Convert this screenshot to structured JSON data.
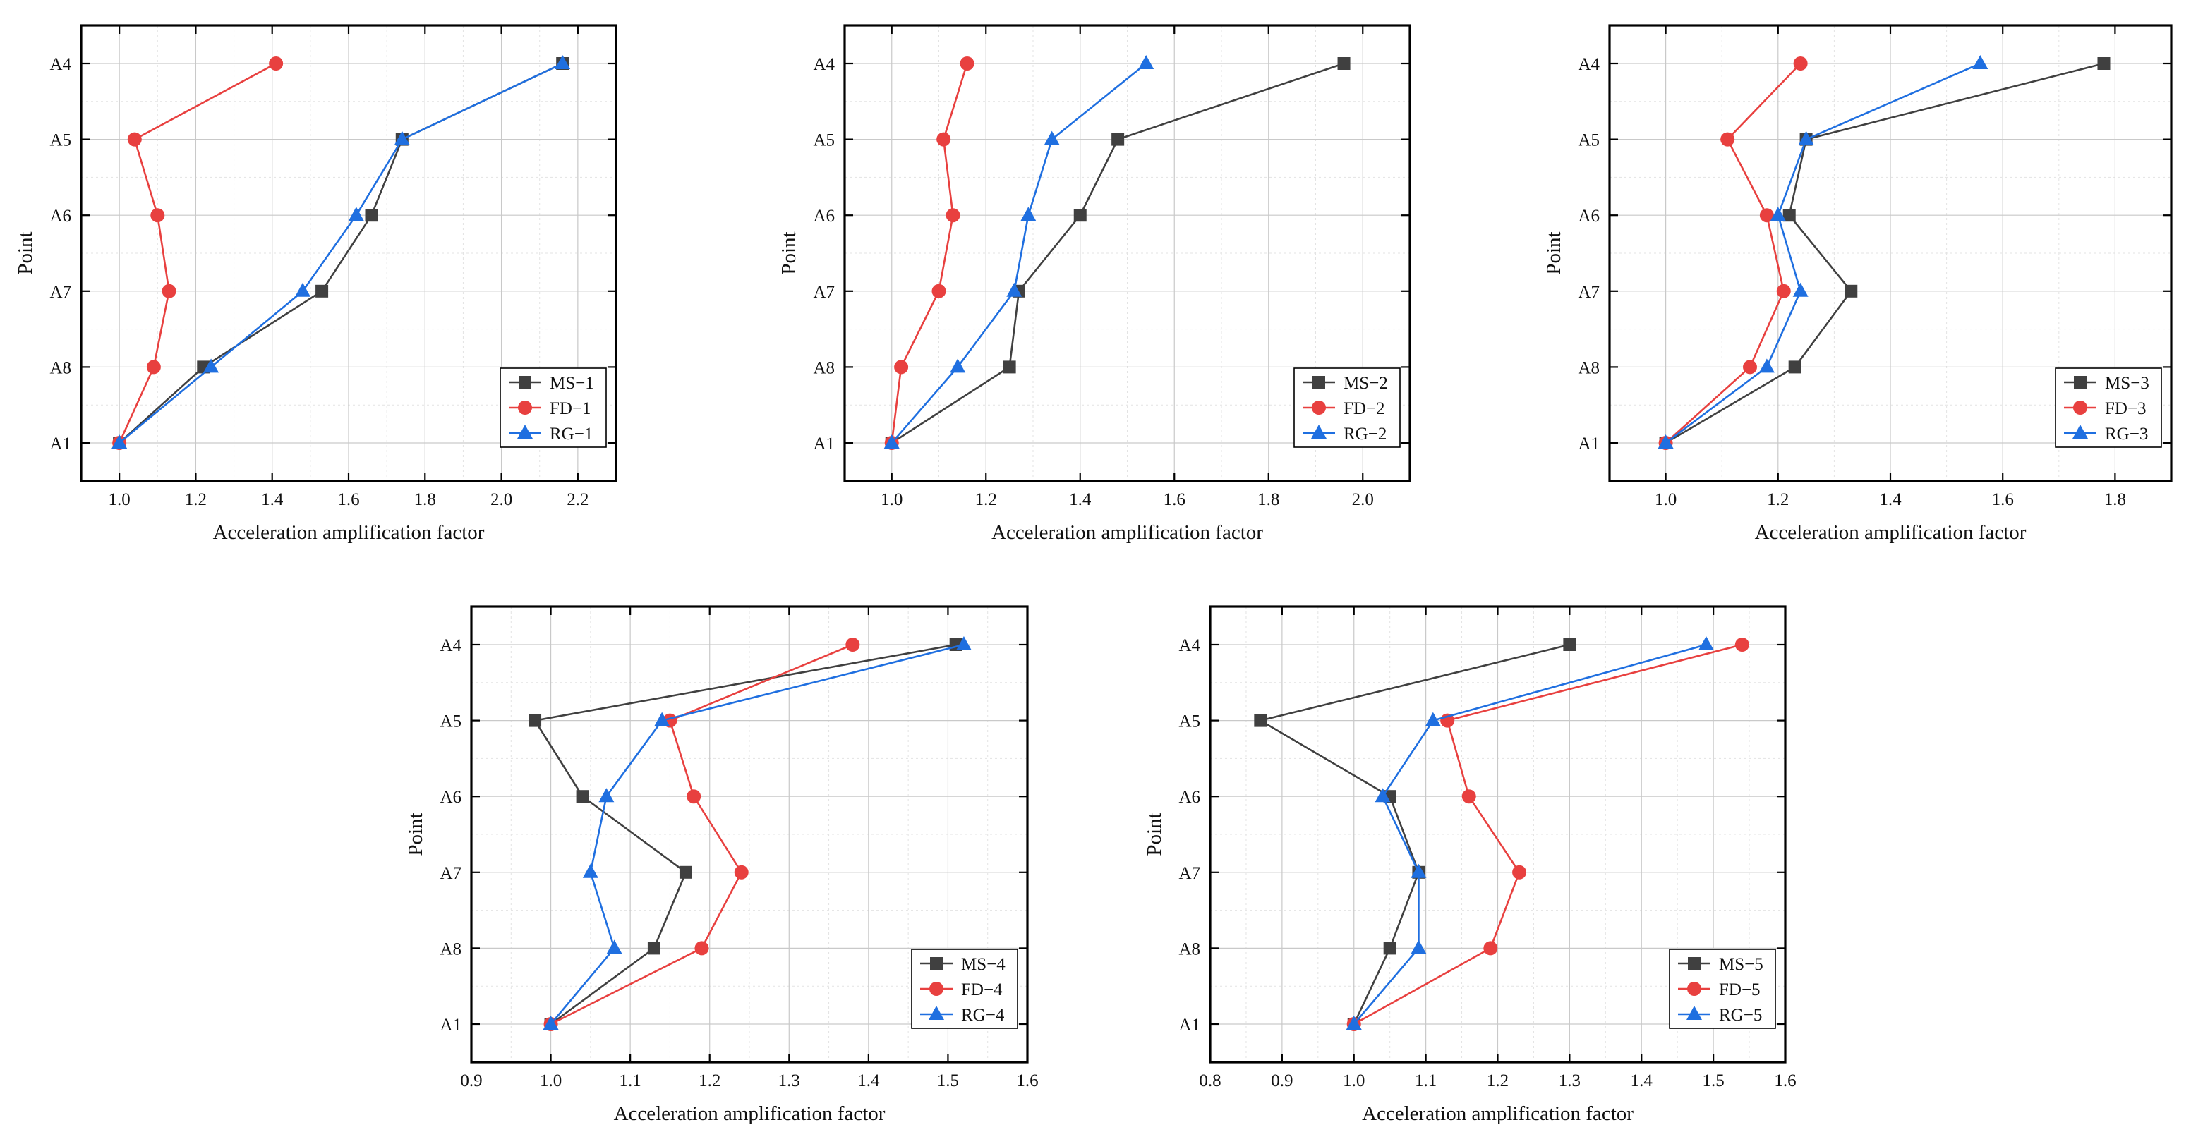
{
  "colors": {
    "MS": "#404040",
    "FD": "#e8403f",
    "RG": "#1f6fe0"
  },
  "chart_data": [
    {
      "type": "line",
      "panel": "1",
      "xlabel": "Acceleration amplification factor",
      "ylabel": "Point",
      "categories": [
        "A4",
        "A5",
        "A6",
        "A7",
        "A8",
        "A1"
      ],
      "xlim": [
        0.9,
        2.3
      ],
      "xticks": [
        1.0,
        1.2,
        1.4,
        1.6,
        1.8,
        2.0,
        2.2
      ],
      "xtick_labels": [
        "1.0",
        "1.2",
        "1.4",
        "1.6",
        "1.8",
        "2.0",
        "2.2"
      ],
      "legend_position": "bottom-right",
      "series": [
        {
          "name": "MS−1",
          "marker": "square",
          "values": [
            2.16,
            1.74,
            1.66,
            1.53,
            1.22,
            1.0
          ]
        },
        {
          "name": "FD−1",
          "marker": "circle",
          "values": [
            1.41,
            1.04,
            1.1,
            1.13,
            1.09,
            1.0
          ]
        },
        {
          "name": "RG−1",
          "marker": "triangle",
          "values": [
            2.16,
            1.74,
            1.62,
            1.48,
            1.24,
            1.0
          ]
        }
      ]
    },
    {
      "type": "line",
      "panel": "2",
      "xlabel": "Acceleration amplification factor",
      "ylabel": "Point",
      "categories": [
        "A4",
        "A5",
        "A6",
        "A7",
        "A8",
        "A1"
      ],
      "xlim": [
        0.9,
        2.1
      ],
      "xticks": [
        1.0,
        1.2,
        1.4,
        1.6,
        1.8,
        2.0
      ],
      "xtick_labels": [
        "1.0",
        "1.2",
        "1.4",
        "1.6",
        "1.8",
        "2.0"
      ],
      "legend_position": "bottom-right",
      "series": [
        {
          "name": "MS−2",
          "marker": "square",
          "values": [
            1.96,
            1.48,
            1.4,
            1.27,
            1.25,
            1.0
          ]
        },
        {
          "name": "FD−2",
          "marker": "circle",
          "values": [
            1.16,
            1.11,
            1.13,
            1.1,
            1.02,
            1.0
          ]
        },
        {
          "name": "RG−2",
          "marker": "triangle",
          "values": [
            1.54,
            1.34,
            1.29,
            1.26,
            1.14,
            1.0
          ]
        }
      ]
    },
    {
      "type": "line",
      "panel": "3",
      "xlabel": "Acceleration amplification factor",
      "ylabel": "Point",
      "categories": [
        "A4",
        "A5",
        "A6",
        "A7",
        "A8",
        "A1"
      ],
      "xlim": [
        0.9,
        1.9
      ],
      "xticks": [
        1.0,
        1.2,
        1.4,
        1.6,
        1.8
      ],
      "xtick_labels": [
        "1.0",
        "1.2",
        "1.4",
        "1.6",
        "1.8"
      ],
      "legend_position": "bottom-right",
      "series": [
        {
          "name": "MS−3",
          "marker": "square",
          "values": [
            1.78,
            1.25,
            1.22,
            1.33,
            1.23,
            1.0
          ]
        },
        {
          "name": "FD−3",
          "marker": "circle",
          "values": [
            1.24,
            1.11,
            1.18,
            1.21,
            1.15,
            1.0
          ]
        },
        {
          "name": "RG−3",
          "marker": "triangle",
          "values": [
            1.56,
            1.25,
            1.2,
            1.24,
            1.18,
            1.0
          ]
        }
      ]
    },
    {
      "type": "line",
      "panel": "4",
      "xlabel": "Acceleration amplification factor",
      "ylabel": "Point",
      "categories": [
        "A4",
        "A5",
        "A6",
        "A7",
        "A8",
        "A1"
      ],
      "xlim": [
        0.9,
        1.6
      ],
      "xticks": [
        0.9,
        1.0,
        1.1,
        1.2,
        1.3,
        1.4,
        1.5,
        1.6
      ],
      "xtick_labels": [
        "0.9",
        "1.0",
        "1.1",
        "1.2",
        "1.3",
        "1.4",
        "1.5",
        "1.6"
      ],
      "legend_position": "bottom-right",
      "series": [
        {
          "name": "MS−4",
          "marker": "square",
          "values": [
            1.51,
            0.98,
            1.04,
            1.17,
            1.13,
            1.0
          ]
        },
        {
          "name": "FD−4",
          "marker": "circle",
          "values": [
            1.38,
            1.15,
            1.18,
            1.24,
            1.19,
            1.0
          ]
        },
        {
          "name": "RG−4",
          "marker": "triangle",
          "values": [
            1.52,
            1.14,
            1.07,
            1.05,
            1.08,
            1.0
          ]
        }
      ]
    },
    {
      "type": "line",
      "panel": "5",
      "xlabel": "Acceleration amplification factor",
      "ylabel": "Point",
      "categories": [
        "A4",
        "A5",
        "A6",
        "A7",
        "A8",
        "A1"
      ],
      "xlim": [
        0.8,
        1.6
      ],
      "xticks": [
        0.8,
        0.9,
        1.0,
        1.1,
        1.2,
        1.3,
        1.4,
        1.5,
        1.6
      ],
      "xtick_labels": [
        "0.8",
        "0.9",
        "1.0",
        "1.1",
        "1.2",
        "1.3",
        "1.4",
        "1.5",
        "1.6"
      ],
      "legend_position": "bottom-right",
      "series": [
        {
          "name": "MS−5",
          "marker": "square",
          "values": [
            1.3,
            0.87,
            1.05,
            1.09,
            1.05,
            1.0
          ]
        },
        {
          "name": "FD−5",
          "marker": "circle",
          "values": [
            1.54,
            1.13,
            1.16,
            1.23,
            1.19,
            1.0
          ]
        },
        {
          "name": "RG−5",
          "marker": "triangle",
          "values": [
            1.49,
            1.11,
            1.04,
            1.09,
            1.09,
            1.0
          ]
        }
      ]
    }
  ]
}
